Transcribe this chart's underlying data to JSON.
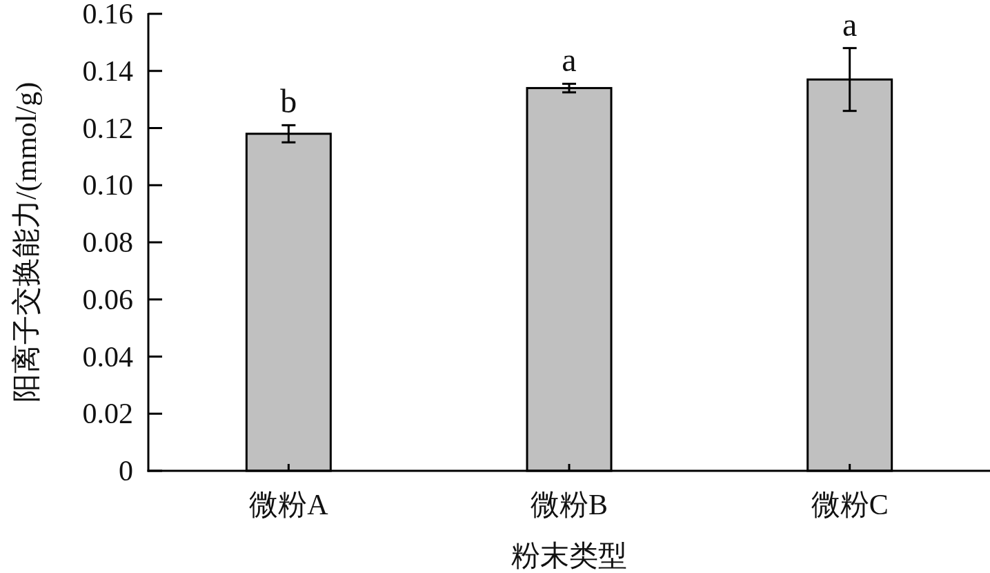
{
  "chart_data": {
    "type": "bar",
    "xlabel": "粉末类型",
    "ylabel": "阳离子交换能力/(mmol/g)",
    "categories": [
      "微粉A",
      "微粉B",
      "微粉C"
    ],
    "values": [
      0.118,
      0.134,
      0.137
    ],
    "errors": [
      0.003,
      0.0015,
      0.011
    ],
    "color": "#c0c0c0",
    "ylim": [
      0,
      0.16
    ],
    "yticks": [
      {
        "value": 0,
        "label": "0"
      },
      {
        "value": 0.02,
        "label": "0.02"
      },
      {
        "value": 0.04,
        "label": "0.04"
      },
      {
        "value": 0.06,
        "label": "0.06"
      },
      {
        "value": 0.08,
        "label": "0.08"
      },
      {
        "value": 0.1,
        "label": "0.10"
      },
      {
        "value": 0.12,
        "label": "0.12"
      },
      {
        "value": 0.14,
        "label": "0.14"
      },
      {
        "value": 0.16,
        "label": "0.16"
      }
    ],
    "annotations": [
      {
        "text": "b",
        "x": "微粉A",
        "y": 0.121
      },
      {
        "text": "a",
        "x": "微粉B",
        "y": 0.1355
      },
      {
        "text": "a",
        "x": "微粉C",
        "y": 0.148
      }
    ],
    "grid": false
  }
}
